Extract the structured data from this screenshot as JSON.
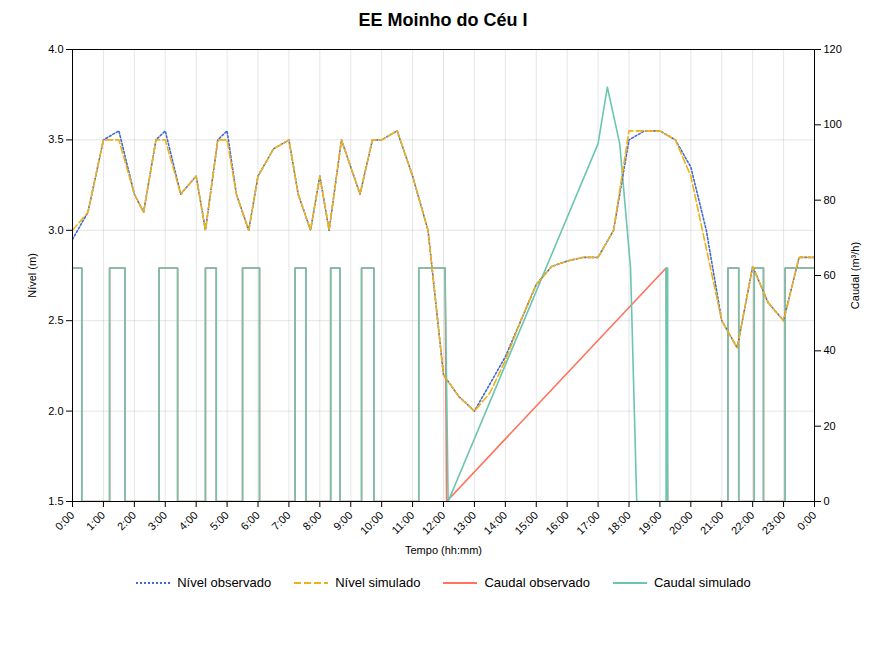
{
  "chart_data": {
    "type": "line",
    "title": "EE Moinho do Céu I",
    "x_label": "Tempo (hh:mm)",
    "y_label": "Nível (m)",
    "y2_label": "Caudal (m³/h)",
    "xlim": [
      0,
      24
    ],
    "xticks": [
      {
        "value": 0,
        "label": "0:00"
      },
      {
        "value": 1,
        "label": "1:00"
      },
      {
        "value": 2,
        "label": "2:00"
      },
      {
        "value": 3,
        "label": "3:00"
      },
      {
        "value": 4,
        "label": "4:00"
      },
      {
        "value": 5,
        "label": "5:00"
      },
      {
        "value": 6,
        "label": "6:00"
      },
      {
        "value": 7,
        "label": "7:00"
      },
      {
        "value": 8,
        "label": "8:00"
      },
      {
        "value": 9,
        "label": "9:00"
      },
      {
        "value": 10,
        "label": "10:00"
      },
      {
        "value": 11,
        "label": "11:00"
      },
      {
        "value": 12,
        "label": "12:00"
      },
      {
        "value": 13,
        "label": "13:00"
      },
      {
        "value": 14,
        "label": "14:00"
      },
      {
        "value": 15,
        "label": "15:00"
      },
      {
        "value": 16,
        "label": "16:00"
      },
      {
        "value": 17,
        "label": "17:00"
      },
      {
        "value": 18,
        "label": "18:00"
      },
      {
        "value": 19,
        "label": "19:00"
      },
      {
        "value": 20,
        "label": "20:00"
      },
      {
        "value": 21,
        "label": "21:00"
      },
      {
        "value": 22,
        "label": "22:00"
      },
      {
        "value": 23,
        "label": "23:00"
      },
      {
        "value": 24,
        "label": "0:00"
      }
    ],
    "ylim": [
      1.5,
      4.0
    ],
    "yticks": [
      1.5,
      {
        "value": 2.0,
        "label": "2.0"
      },
      2.5,
      {
        "value": 3.0,
        "label": "3.0"
      },
      3.5,
      {
        "value": 4.0,
        "label": "4.0"
      }
    ],
    "y2lim": [
      0,
      120
    ],
    "y2ticks": [
      0,
      20,
      40,
      60,
      80,
      100,
      120
    ],
    "grid": true,
    "legend": "bottom",
    "series": [
      {
        "name": "Nível observado",
        "line_style": "dotted",
        "x": [
          0,
          0.5,
          1,
          1.5,
          2,
          2.3,
          2.7,
          3,
          3.5,
          4,
          4.3,
          4.7,
          5,
          5.3,
          5.7,
          6,
          6.5,
          7,
          7.3,
          7.7,
          8,
          8.3,
          8.7,
          9,
          9.3,
          9.7,
          10,
          10.5,
          11,
          11.5,
          12,
          12.5,
          13,
          13.5,
          14,
          14.5,
          15,
          15.5,
          16,
          16.5,
          17,
          17.5,
          18,
          18.5,
          19,
          19.5,
          20,
          20.5,
          21,
          21.5,
          22,
          22.5,
          23,
          23.5,
          24
        ],
        "values": [
          2.95,
          3.1,
          3.5,
          3.55,
          3.2,
          3.1,
          3.5,
          3.55,
          3.2,
          3.3,
          3.0,
          3.5,
          3.55,
          3.2,
          3.0,
          3.3,
          3.45,
          3.5,
          3.2,
          3.0,
          3.3,
          3.0,
          3.5,
          3.35,
          3.2,
          3.5,
          3.5,
          3.55,
          3.3,
          3.0,
          2.2,
          2.08,
          2.0,
          2.15,
          2.3,
          2.5,
          2.7,
          2.8,
          2.83,
          2.85,
          2.85,
          3.0,
          3.5,
          3.55,
          3.55,
          3.5,
          3.35,
          3.0,
          2.5,
          2.35,
          2.8,
          2.6,
          2.5,
          2.85,
          2.85
        ]
      },
      {
        "name": "Nível simulado",
        "line_style": "dashed",
        "x": [
          0,
          0.5,
          1,
          1.5,
          2,
          2.3,
          2.7,
          3,
          3.5,
          4,
          4.3,
          4.7,
          5,
          5.3,
          5.7,
          6,
          6.5,
          7,
          7.3,
          7.7,
          8,
          8.3,
          8.7,
          9,
          9.3,
          9.7,
          10,
          10.5,
          11,
          11.5,
          12,
          12.5,
          13,
          13.5,
          14,
          14.5,
          15,
          15.5,
          16,
          16.5,
          17,
          17.5,
          18,
          18.5,
          19,
          19.5,
          20,
          20.5,
          21,
          21.5,
          22,
          22.5,
          23,
          23.5,
          24
        ],
        "values": [
          3.0,
          3.1,
          3.5,
          3.5,
          3.2,
          3.1,
          3.5,
          3.5,
          3.2,
          3.3,
          3.0,
          3.5,
          3.5,
          3.2,
          3.0,
          3.3,
          3.45,
          3.5,
          3.2,
          3.0,
          3.3,
          3.0,
          3.5,
          3.35,
          3.2,
          3.5,
          3.5,
          3.55,
          3.3,
          3.0,
          2.2,
          2.08,
          2.0,
          2.1,
          2.28,
          2.5,
          2.7,
          2.8,
          2.83,
          2.85,
          2.85,
          3.0,
          3.55,
          3.55,
          3.55,
          3.5,
          3.3,
          2.9,
          2.5,
          2.35,
          2.8,
          2.6,
          2.5,
          2.85,
          2.85
        ]
      },
      {
        "name": "Caudal observado",
        "line_style": "solid",
        "axis": "y2",
        "x": [
          0,
          0.3,
          0.3,
          1.2,
          1.2,
          1.7,
          1.7,
          2.8,
          2.8,
          3.4,
          3.4,
          4.3,
          4.3,
          4.65,
          4.65,
          5.5,
          5.5,
          6.05,
          6.05,
          7.2,
          7.2,
          7.55,
          7.55,
          8.35,
          8.35,
          8.65,
          8.65,
          9.35,
          9.35,
          9.75,
          9.75,
          11.2,
          11.2,
          12.05,
          12.05,
          12.1,
          12.1,
          19.2,
          19.2,
          19.25,
          19.25,
          21.2,
          21.2,
          21.55,
          21.55,
          22.05,
          22.05,
          22.35,
          22.35,
          23.05,
          23.05,
          24
        ],
        "values": [
          62,
          62,
          0,
          0,
          62,
          62,
          0,
          0,
          62,
          62,
          0,
          0,
          62,
          62,
          0,
          0,
          62,
          62,
          0,
          0,
          62,
          62,
          0,
          0,
          62,
          62,
          0,
          0,
          62,
          62,
          0,
          0,
          62,
          62,
          62,
          0,
          0,
          62,
          62,
          0,
          0,
          0,
          62,
          62,
          0,
          0,
          62,
          62,
          0,
          0,
          62,
          62
        ]
      },
      {
        "name": "Caudal simulado",
        "line_style": "solid",
        "axis": "y2",
        "x": [
          0,
          0.3,
          0.3,
          1.2,
          1.2,
          1.7,
          1.7,
          2.8,
          2.8,
          3.4,
          3.4,
          4.3,
          4.3,
          4.65,
          4.65,
          5.5,
          5.5,
          6.05,
          6.05,
          7.2,
          7.2,
          7.55,
          7.55,
          8.35,
          8.35,
          8.65,
          8.65,
          9.35,
          9.35,
          9.75,
          9.75,
          11.2,
          11.2,
          12.05,
          12.05,
          12.15,
          12.15,
          17.0,
          17.0,
          17.3,
          17.3,
          17.7,
          17.7,
          18.05,
          18.05,
          18.25,
          18.25,
          19.2,
          19.2,
          19.25,
          19.25,
          21.2,
          21.2,
          21.55,
          21.55,
          22.05,
          22.05,
          22.35,
          22.35,
          23.05,
          23.05,
          24
        ],
        "values": [
          62,
          62,
          0,
          0,
          62,
          62,
          0,
          0,
          62,
          62,
          0,
          0,
          62,
          62,
          0,
          0,
          62,
          62,
          0,
          0,
          62,
          62,
          0,
          0,
          62,
          62,
          0,
          0,
          62,
          62,
          0,
          0,
          62,
          62,
          62,
          0,
          0,
          95,
          95,
          110,
          110,
          95,
          95,
          62,
          62,
          0,
          0,
          0,
          62,
          62,
          0,
          0,
          62,
          62,
          0,
          0,
          62,
          62,
          0,
          0,
          62,
          62
        ]
      }
    ]
  }
}
